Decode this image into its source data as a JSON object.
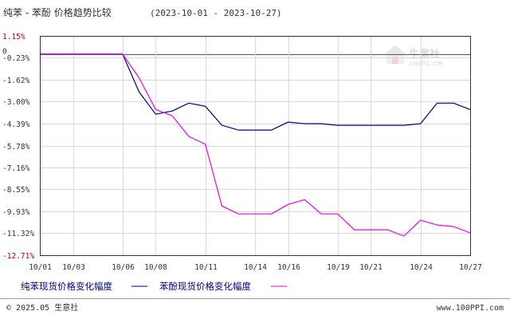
{
  "header": {
    "title": "纯苯 - 苯酚 价格趋势比较",
    "date_range": "(2023-10-01 - 2023-10-27)"
  },
  "footer": {
    "copyright": "© 2025.05 生意社",
    "website": "www.100PPI.com"
  },
  "watermark": {
    "brand": "生意社",
    "url": "100PPI.COM"
  },
  "colors": {
    "benzene": "#000080",
    "phenol": "#ee00ee",
    "grid": "#d9d9d9",
    "axis": "#333333",
    "separator": "#a0a0a0"
  },
  "chart_data": {
    "type": "line",
    "title": "纯苯 - 苯酚 价格趋势比较",
    "x": [
      "10/01",
      "10/02",
      "10/03",
      "10/04",
      "10/05",
      "10/06",
      "10/07",
      "10/08",
      "10/09",
      "10/10",
      "10/11",
      "10/12",
      "10/13",
      "10/14",
      "10/15",
      "10/16",
      "10/17",
      "10/18",
      "10/19",
      "10/20",
      "10/21",
      "10/22",
      "10/23",
      "10/24",
      "10/25",
      "10/26",
      "10/27"
    ],
    "x_tick_labels": [
      "10/01",
      "10/03",
      "10/06",
      "10/08",
      "10/11",
      "10/14",
      "10/16",
      "10/19",
      "10/21",
      "10/24",
      "10/27"
    ],
    "y_tick_labels": [
      "1.15%",
      "-0.23%",
      "-1.62%",
      "-3.00%",
      "-4.39%",
      "-5.78%",
      "-7.16%",
      "-8.55%",
      "-9.93%",
      "-11.32%",
      "-12.71%"
    ],
    "y_tick_values": [
      1.15,
      -0.23,
      -1.62,
      -3.0,
      -4.39,
      -5.78,
      -7.16,
      -8.55,
      -9.93,
      -11.32,
      -12.71
    ],
    "zero_label": "0",
    "ylim": [
      -12.71,
      1.15
    ],
    "grid": true,
    "legend_position": "bottom-left",
    "series": [
      {
        "name": "纯苯现货价格变化幅度",
        "values": [
          0,
          0,
          0,
          0,
          0,
          0,
          -2.4,
          -3.8,
          -3.6,
          -3.1,
          -3.3,
          -4.5,
          -4.8,
          -4.8,
          -4.8,
          -4.3,
          -4.4,
          -4.4,
          -4.5,
          -4.5,
          -4.5,
          -4.5,
          -4.5,
          -4.4,
          -3.1,
          -3.1,
          -3.5
        ]
      },
      {
        "name": "苯酚现货价格变化幅度",
        "values": [
          0,
          0,
          0,
          0,
          0,
          0,
          -1.5,
          -3.5,
          -3.9,
          -5.2,
          -5.7,
          -9.6,
          -10.1,
          -10.1,
          -10.1,
          -9.5,
          -9.2,
          -10.1,
          -10.1,
          -11.1,
          -11.1,
          -11.1,
          -11.5,
          -10.5,
          -10.8,
          -10.9,
          -11.3
        ]
      }
    ]
  }
}
